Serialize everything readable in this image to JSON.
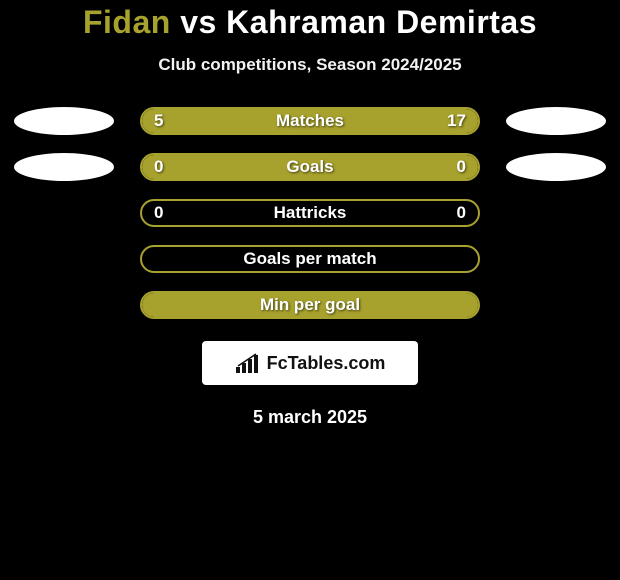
{
  "title": {
    "player1": "Fidan",
    "vs": " vs ",
    "player2": "Kahraman Demirtas",
    "player1_color": "#a7a12d",
    "player2_color": "#ffffff",
    "vs_color": "#ffffff"
  },
  "subtitle": "Club competitions, Season 2024/2025",
  "background_color": "#000000",
  "accent_color": "#a7a12d",
  "stats": [
    {
      "label": "Matches",
      "left_value": "5",
      "right_value": "17",
      "left_fill_pct": 23,
      "right_fill_pct": 77,
      "left_ellipse": true,
      "right_ellipse": true,
      "left_ellipse_color": "#ffffff",
      "right_ellipse_color": "#ffffff"
    },
    {
      "label": "Goals",
      "left_value": "0",
      "right_value": "0",
      "left_fill_pct": 50,
      "right_fill_pct": 50,
      "left_ellipse": true,
      "right_ellipse": true,
      "left_ellipse_color": "#ffffff",
      "right_ellipse_color": "#ffffff"
    },
    {
      "label": "Hattricks",
      "left_value": "0",
      "right_value": "0",
      "left_fill_pct": 0,
      "right_fill_pct": 0,
      "left_ellipse": false,
      "right_ellipse": false
    },
    {
      "label": "Goals per match",
      "left_value": "",
      "right_value": "",
      "left_fill_pct": 0,
      "right_fill_pct": 0,
      "left_ellipse": false,
      "right_ellipse": false
    },
    {
      "label": "Min per goal",
      "left_value": "",
      "right_value": "",
      "left_fill_pct": 100,
      "right_fill_pct": 0,
      "left_ellipse": false,
      "right_ellipse": false
    }
  ],
  "brand": "FcTables.com",
  "date": "5 march 2025"
}
